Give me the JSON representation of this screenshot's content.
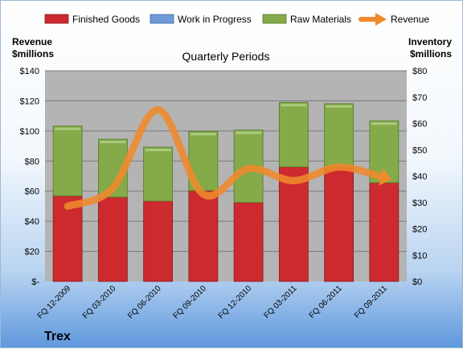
{
  "chart_data": {
    "type": "bar",
    "subtitle": "Quarterly Periods",
    "company": "Trex",
    "y_left_label": [
      "Revenue",
      "$millions"
    ],
    "y_right_label": [
      "Inventory",
      "$millions"
    ],
    "y_left_ticks": [
      "$-",
      "$20",
      "$40",
      "$60",
      "$80",
      "$100",
      "$120",
      "$140"
    ],
    "y_right_ticks": [
      "$0",
      "$10",
      "$20",
      "$30",
      "$40",
      "$50",
      "$60",
      "$70",
      "$80"
    ],
    "y_left_range": [
      0,
      140
    ],
    "y_right_range": [
      0,
      80
    ],
    "categories": [
      "FQ 12-2009",
      "FQ 03-2010",
      "FQ 06-2010",
      "FQ 09-2010",
      "FQ 12-2010",
      "FQ 03-2011",
      "FQ 06-2011",
      "FQ 09-2011"
    ],
    "legend_position": "top",
    "series": [
      {
        "name": "Finished Goods",
        "type": "stacked-bar",
        "axis": "right",
        "color": "#cc2a2e",
        "values": [
          32.5,
          32.0,
          30.5,
          34.5,
          30.0,
          43.5,
          43.5,
          37.5
        ]
      },
      {
        "name": "Work in Progress",
        "type": "stacked-bar",
        "axis": "right",
        "color": "#6f9ad6",
        "values": [
          0,
          0,
          0,
          0,
          0,
          0,
          0,
          0
        ]
      },
      {
        "name": "Raw Materials",
        "type": "stacked-bar",
        "axis": "right",
        "color": "#84aa4a",
        "values": [
          26.5,
          22.0,
          20.5,
          22.5,
          27.5,
          24.5,
          24.0,
          23.5
        ]
      },
      {
        "name": "Revenue",
        "type": "line",
        "axis": "left",
        "color": "#ef8a2c",
        "values": [
          50,
          62,
          114,
          58,
          75,
          67,
          76,
          69
        ]
      }
    ]
  }
}
